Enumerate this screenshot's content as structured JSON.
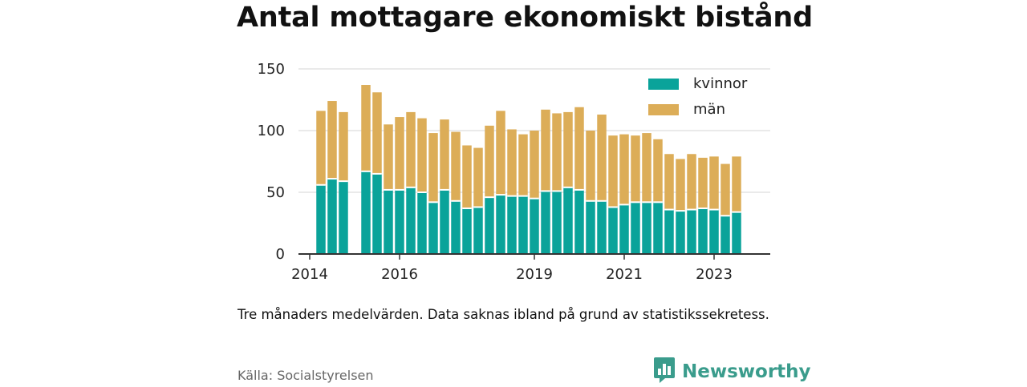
{
  "title": "Antal mottagare ekonomiskt bistånd",
  "note": "Tre månaders medelvärden. Data saknas ibland på grund av statistikssekretess.",
  "source": "Källa: Socialstyrelsen",
  "brand": "Newsworthy",
  "colors": {
    "kvinnor": "#0aa39a",
    "man": "#dcad58",
    "grid": "#dddddd",
    "axis": "#333333",
    "brand": "#3a9c8c"
  },
  "chart_data": {
    "type": "bar",
    "stacked": true,
    "x_unit": "quarter",
    "x_ticks": [
      {
        "label": "2014",
        "x": 2014.0
      },
      {
        "label": "2016",
        "x": 2016.0
      },
      {
        "label": "2019",
        "x": 2019.0
      },
      {
        "label": "2021",
        "x": 2021.0
      },
      {
        "label": "2023",
        "x": 2023.0
      }
    ],
    "xlim": [
      2013.75,
      2024.25
    ],
    "ylim": [
      0,
      150
    ],
    "y_ticks": [
      0,
      50,
      100,
      150
    ],
    "grid": true,
    "legend_position": "top-right",
    "x": [
      2014.25,
      2014.5,
      2014.75,
      2015.25,
      2015.5,
      2015.75,
      2016.0,
      2016.25,
      2016.5,
      2016.75,
      2017.0,
      2017.25,
      2017.5,
      2017.75,
      2018.0,
      2018.25,
      2018.5,
      2018.75,
      2019.0,
      2019.25,
      2019.5,
      2019.75,
      2020.0,
      2020.25,
      2020.5,
      2020.75,
      2021.0,
      2021.25,
      2021.5,
      2021.75,
      2022.0,
      2022.25,
      2022.5,
      2022.75,
      2023.0,
      2023.25,
      2023.5
    ],
    "series": [
      {
        "name": "kvinnor",
        "values": [
          56,
          61,
          59,
          67,
          65,
          52,
          52,
          54,
          50,
          42,
          52,
          43,
          37,
          38,
          46,
          48,
          47,
          47,
          45,
          51,
          51,
          54,
          52,
          43,
          43,
          38,
          40,
          42,
          42,
          42,
          36,
          35,
          36,
          37,
          36,
          31,
          34
        ]
      },
      {
        "name": "män",
        "values": [
          60,
          63,
          56,
          70,
          66,
          53,
          59,
          61,
          60,
          56,
          57,
          56,
          51,
          48,
          58,
          68,
          54,
          50,
          55,
          66,
          63,
          61,
          67,
          57,
          70,
          58,
          57,
          54,
          56,
          51,
          45,
          42,
          45,
          41,
          43,
          42,
          45
        ]
      }
    ]
  }
}
